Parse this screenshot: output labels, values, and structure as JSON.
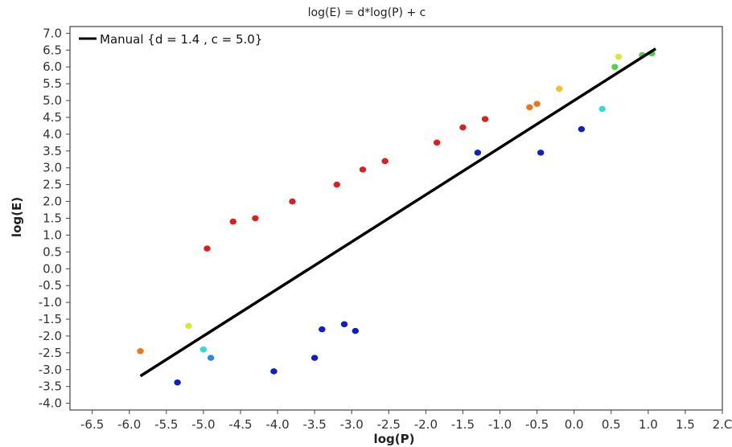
{
  "chart_data": {
    "type": "scatter",
    "title": "log(E) = d*log(P) + c",
    "xlabel": "log(P)",
    "ylabel": "log(E)",
    "xlim": [
      -6.8,
      2.0
    ],
    "ylim": [
      -4.2,
      7.2
    ],
    "x_ticks": [
      "-6.5",
      "-6.0",
      "-5.5",
      "-5.0",
      "-4.5",
      "-4.0",
      "-3.5",
      "-3.0",
      "-2.5",
      "-2.0",
      "-1.5",
      "-1.0",
      "-0.5",
      "0.0",
      "0.5",
      "1.0",
      "1.5",
      "2.C"
    ],
    "y_ticks": [
      "7.0",
      "6.5",
      "6.0",
      "5.5",
      "5.0",
      "4.5",
      "4.0",
      "3.5",
      "3.0",
      "2.5",
      "2.0",
      "1.5",
      "1.0",
      "0.5",
      "0.0",
      "-0.5",
      "-1.0",
      "-1.5",
      "-2.0",
      "-2.5",
      "-3.0",
      "-3.5",
      "-4.0"
    ],
    "grid": false,
    "legend_position": "top-left",
    "fit_line": {
      "name": "Manual {d = 1.4 , c = 5.0}",
      "color": "#000000",
      "x": [
        -5.85,
        1.1
      ],
      "y": [
        -3.19,
        6.54
      ]
    },
    "colormap": [
      "#1020c0",
      "#2a8ae0",
      "#3ad8d8",
      "#52d048",
      "#d8e838",
      "#f0c030",
      "#e87820",
      "#d82020"
    ],
    "series": [
      {
        "points": [
          {
            "x": -5.85,
            "y": -2.45,
            "c": 6
          },
          {
            "x": -5.35,
            "y": -3.38,
            "c": 0
          },
          {
            "x": -5.2,
            "y": -1.7,
            "c": 4
          },
          {
            "x": -5.0,
            "y": -2.4,
            "c": 2
          },
          {
            "x": -4.9,
            "y": -2.65,
            "c": 1
          },
          {
            "x": -4.05,
            "y": -3.05,
            "c": 0
          },
          {
            "x": -3.5,
            "y": -2.65,
            "c": 0
          },
          {
            "x": -3.4,
            "y": -1.8,
            "c": 0
          },
          {
            "x": -2.95,
            "y": -1.85,
            "c": 0
          },
          {
            "x": -3.1,
            "y": -1.65,
            "c": 0
          },
          {
            "x": -1.3,
            "y": 3.45,
            "c": 0
          },
          {
            "x": -0.45,
            "y": 3.45,
            "c": 0
          },
          {
            "x": 0.1,
            "y": 4.15,
            "c": 0
          },
          {
            "x": 0.38,
            "y": 4.75,
            "c": 2
          },
          {
            "x": -0.2,
            "y": 5.35,
            "c": 5
          },
          {
            "x": 0.6,
            "y": 6.3,
            "c": 4
          },
          {
            "x": 0.55,
            "y": 6.0,
            "c": 3
          },
          {
            "x": 0.92,
            "y": 6.35,
            "c": 3
          },
          {
            "x": 1.05,
            "y": 6.4,
            "c": 3
          },
          {
            "x": -4.95,
            "y": 0.6,
            "c": 7
          },
          {
            "x": -4.6,
            "y": 1.4,
            "c": 7
          },
          {
            "x": -4.3,
            "y": 1.5,
            "c": 7
          },
          {
            "x": -3.8,
            "y": 2.0,
            "c": 7
          },
          {
            "x": -3.2,
            "y": 2.5,
            "c": 7
          },
          {
            "x": -2.85,
            "y": 2.95,
            "c": 7
          },
          {
            "x": -2.55,
            "y": 3.2,
            "c": 7
          },
          {
            "x": -1.85,
            "y": 3.75,
            "c": 7
          },
          {
            "x": -1.5,
            "y": 4.2,
            "c": 7
          },
          {
            "x": -1.2,
            "y": 4.45,
            "c": 7
          },
          {
            "x": -0.6,
            "y": 4.8,
            "c": 6
          },
          {
            "x": -0.5,
            "y": 4.9,
            "c": 6
          }
        ]
      }
    ]
  }
}
